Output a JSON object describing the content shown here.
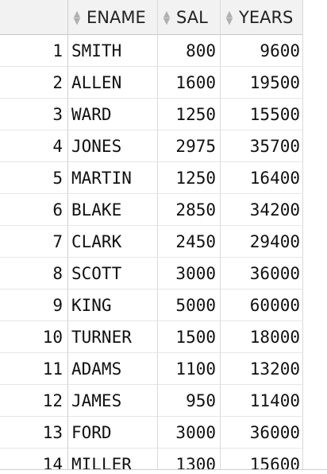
{
  "table": {
    "columns": [
      "ENAME",
      "SAL",
      "YEARS"
    ],
    "rows": [
      {
        "num": "1",
        "ename": "SMITH",
        "sal": "800",
        "years": "9600"
      },
      {
        "num": "2",
        "ename": "ALLEN",
        "sal": "1600",
        "years": "19500"
      },
      {
        "num": "3",
        "ename": "WARD",
        "sal": "1250",
        "years": "15500"
      },
      {
        "num": "4",
        "ename": "JONES",
        "sal": "2975",
        "years": "35700"
      },
      {
        "num": "5",
        "ename": "MARTIN",
        "sal": "1250",
        "years": "16400"
      },
      {
        "num": "6",
        "ename": "BLAKE",
        "sal": "2850",
        "years": "34200"
      },
      {
        "num": "7",
        "ename": "CLARK",
        "sal": "2450",
        "years": "29400"
      },
      {
        "num": "8",
        "ename": "SCOTT",
        "sal": "3000",
        "years": "36000"
      },
      {
        "num": "9",
        "ename": "KING",
        "sal": "5000",
        "years": "60000"
      },
      {
        "num": "10",
        "ename": "TURNER",
        "sal": "1500",
        "years": "18000"
      },
      {
        "num": "11",
        "ename": "ADAMS",
        "sal": "1100",
        "years": "13200"
      },
      {
        "num": "12",
        "ename": "JAMES",
        "sal": "950",
        "years": "11400"
      },
      {
        "num": "13",
        "ename": "FORD",
        "sal": "3000",
        "years": "36000"
      },
      {
        "num": "14",
        "ename": "MILLER",
        "sal": "1300",
        "years": "15600"
      }
    ]
  },
  "icons": {
    "sort": "sort-arrows-icon"
  }
}
